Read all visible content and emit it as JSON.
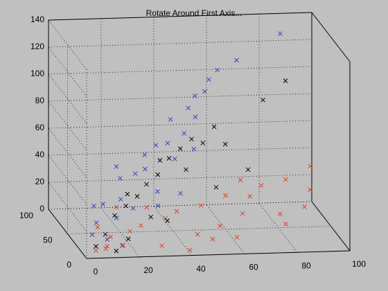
{
  "chart_data": {
    "type": "scatter3d",
    "title": "Rotate Around First Axis...",
    "xlim": [
      0,
      100
    ],
    "ylim": [
      0,
      100
    ],
    "zlim": [
      0,
      140
    ],
    "xticks": [
      0,
      20,
      40,
      60,
      80,
      100
    ],
    "yticks": [
      0,
      50,
      100
    ],
    "zticks": [
      0,
      20,
      40,
      60,
      80,
      100,
      120,
      140
    ],
    "grid": true,
    "marker": "x",
    "series": [
      {
        "color": "#3c3cc8",
        "x": [
          5,
          8,
          10,
          12,
          15,
          18,
          20,
          22,
          25,
          28,
          30,
          32,
          35,
          38,
          40,
          42,
          45,
          48,
          50,
          52,
          55,
          58,
          48,
          62,
          70,
          40,
          30,
          20,
          15,
          10,
          88
        ],
        "y": [
          20,
          30,
          15,
          40,
          25,
          35,
          50,
          30,
          45,
          40,
          55,
          35,
          60,
          50,
          45,
          70,
          55,
          65,
          60,
          75,
          70,
          80,
          50,
          85,
          90,
          30,
          20,
          60,
          10,
          50,
          100
        ],
        "z": [
          10,
          15,
          8,
          25,
          20,
          30,
          40,
          25,
          45,
          50,
          55,
          35,
          60,
          65,
          55,
          75,
          70,
          85,
          80,
          90,
          95,
          100,
          60,
          105,
          110,
          35,
          30,
          45,
          5,
          20,
          125
        ]
      },
      {
        "color": "#e0401e",
        "x": [
          5,
          8,
          10,
          12,
          15,
          20,
          25,
          30,
          35,
          40,
          45,
          50,
          55,
          60,
          65,
          70,
          75,
          80,
          85,
          90,
          95,
          60,
          50,
          40,
          30,
          20,
          70,
          80,
          98,
          10
        ],
        "y": [
          10,
          5,
          15,
          20,
          8,
          25,
          30,
          10,
          35,
          40,
          20,
          45,
          30,
          50,
          40,
          55,
          60,
          45,
          65,
          50,
          70,
          20,
          15,
          5,
          50,
          60,
          80,
          30,
          90,
          40
        ],
        "z": [
          2,
          5,
          3,
          8,
          6,
          10,
          12,
          4,
          15,
          18,
          8,
          20,
          10,
          25,
          15,
          22,
          28,
          12,
          30,
          15,
          20,
          5,
          6,
          2,
          18,
          15,
          25,
          10,
          30,
          8
        ]
      },
      {
        "color": "#000000",
        "x": [
          5,
          10,
          15,
          20,
          25,
          30,
          35,
          40,
          45,
          50,
          55,
          60,
          65,
          70,
          35,
          28,
          22,
          18,
          45,
          55,
          90,
          80,
          12,
          38
        ],
        "y": [
          10,
          20,
          30,
          35,
          40,
          50,
          55,
          60,
          65,
          70,
          75,
          80,
          85,
          60,
          30,
          25,
          45,
          15,
          50,
          40,
          100,
          90,
          5,
          70
        ],
        "z": [
          5,
          10,
          20,
          25,
          30,
          35,
          40,
          50,
          55,
          60,
          55,
          65,
          50,
          40,
          15,
          20,
          30,
          8,
          45,
          35,
          90,
          80,
          3,
          45
        ]
      }
    ]
  }
}
